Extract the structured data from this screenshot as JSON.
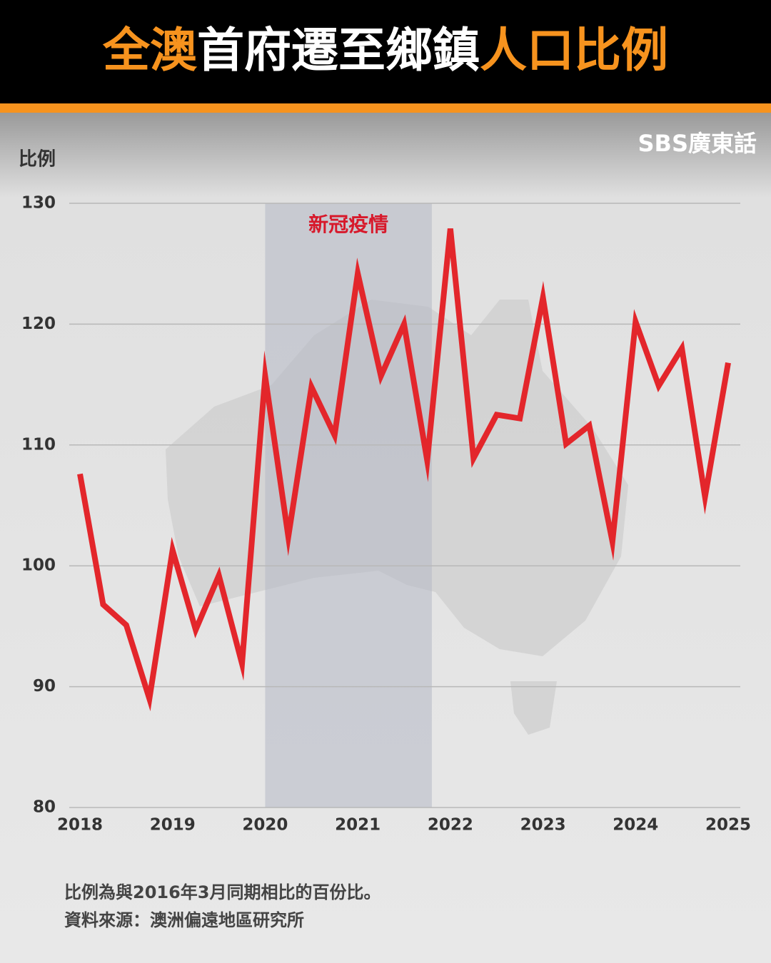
{
  "chart_data": {
    "type": "line",
    "title_segments": [
      {
        "text": "全澳",
        "color": "#f7931e"
      },
      {
        "text": "首府遷至鄉鎮",
        "color": "#ffffff"
      },
      {
        "text": "人口比例",
        "color": "#f7931e"
      }
    ],
    "brand": "SBS廣東話",
    "y_label": "比例",
    "x": [
      2018,
      2018.25,
      2018.5,
      2018.75,
      2019,
      2019.25,
      2019.5,
      2019.75,
      2020,
      2020.25,
      2020.5,
      2020.75,
      2021,
      2021.25,
      2021.5,
      2021.75,
      2022,
      2022.25,
      2022.5,
      2022.75,
      2023,
      2023.25,
      2023.5,
      2023.75,
      2024,
      2024.25,
      2024.5,
      2024.75,
      2025
    ],
    "series": [
      {
        "name": "比例",
        "color": "#e3262b",
        "values": [
          107.6,
          96.8,
          95.1,
          89.0,
          101.3,
          94.7,
          99.2,
          91.9,
          115.7,
          102.4,
          114.8,
          110.8,
          124.2,
          115.7,
          120.0,
          108.7,
          127.9,
          108.9,
          112.5,
          112.2,
          122.2,
          110.1,
          111.6,
          102.0,
          120.2,
          114.9,
          118.0,
          105.7,
          116.8
        ]
      }
    ],
    "xlim": [
      2018,
      2025
    ],
    "xticks": [
      2018,
      2019,
      2020,
      2021,
      2022,
      2023,
      2024,
      2025
    ],
    "ylim": [
      80,
      130
    ],
    "yticks": [
      80,
      90,
      100,
      110,
      120,
      130
    ],
    "grid": true,
    "shaded_region": {
      "label": "新冠疫情",
      "x": [
        2020,
        2021.8
      ],
      "color": "#b5b8c4",
      "label_color": "#d7192b"
    },
    "footnotes": [
      "比例為與2016年3月同期相比的百份比。",
      "資料來源：澳洲偏遠地區研究所"
    ]
  }
}
